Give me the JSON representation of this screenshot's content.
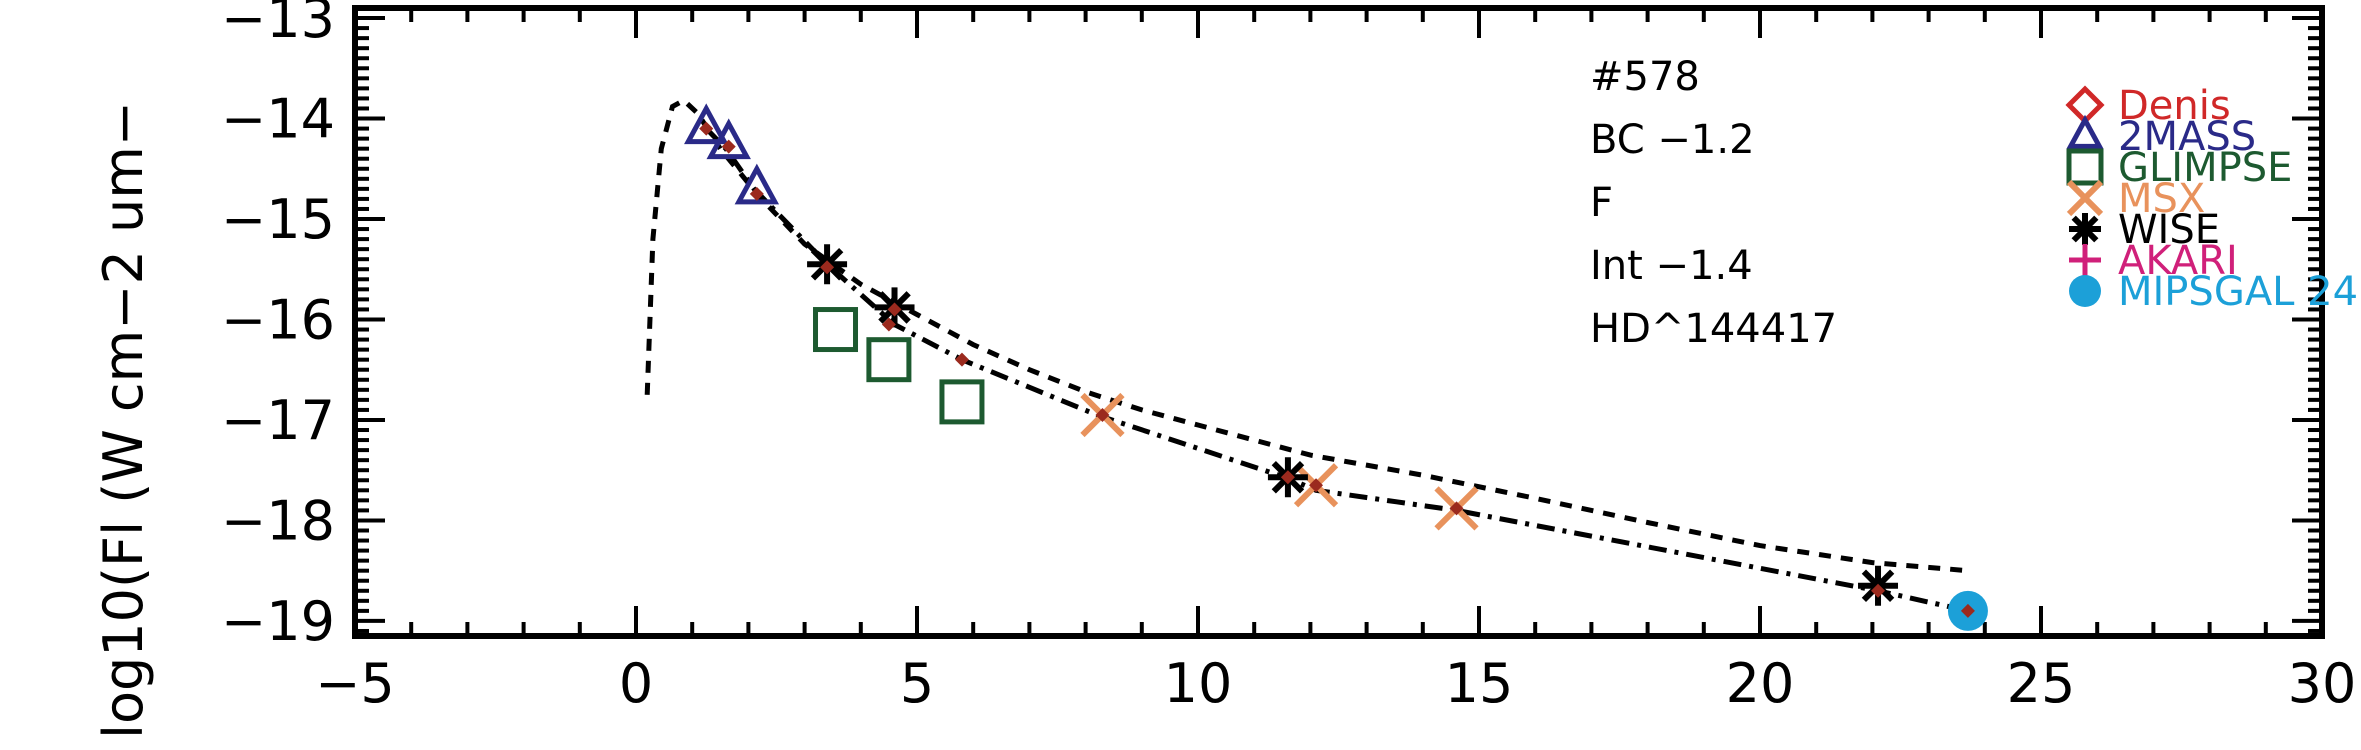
{
  "chart_data": {
    "type": "scatter",
    "ylabel": "log10(Fl (W cm−2 um−",
    "xlim": [
      -5,
      30
    ],
    "ylim": [
      -19.15,
      -12.9
    ],
    "x_ticks": [
      -5,
      0,
      5,
      10,
      15,
      20,
      25,
      30
    ],
    "x_tick_labels": [
      "−5",
      "0",
      "5",
      "10",
      "15",
      "20",
      "25",
      "30"
    ],
    "y_ticks": [
      -19,
      -18,
      -17,
      -16,
      -15,
      -14,
      -13
    ],
    "y_tick_labels": [
      "−19",
      "−18",
      "−17",
      "−16",
      "−15",
      "−14",
      "−13"
    ],
    "annotations": [
      "#578",
      "BC −1.2",
      "F",
      "Int −1.4",
      "HD^144417"
    ],
    "legend_position": "top-right",
    "curves": [
      {
        "style": "dashed",
        "points": [
          [
            0.2,
            -16.75
          ],
          [
            0.3,
            -15.2
          ],
          [
            0.45,
            -14.3
          ],
          [
            0.65,
            -13.88
          ],
          [
            0.85,
            -13.82
          ],
          [
            1.1,
            -13.95
          ],
          [
            1.5,
            -14.3
          ],
          [
            2.2,
            -14.78
          ],
          [
            3.0,
            -15.25
          ],
          [
            4.0,
            -15.65
          ],
          [
            5.0,
            -15.95
          ],
          [
            6.0,
            -16.25
          ],
          [
            7.0,
            -16.5
          ],
          [
            8.0,
            -16.72
          ],
          [
            9.0,
            -16.9
          ],
          [
            10.0,
            -17.05
          ],
          [
            11.0,
            -17.2
          ],
          [
            12.0,
            -17.35
          ],
          [
            14.0,
            -17.55
          ],
          [
            16.0,
            -17.78
          ],
          [
            18.0,
            -18.02
          ],
          [
            20.0,
            -18.25
          ],
          [
            22.0,
            -18.42
          ],
          [
            23.7,
            -18.5
          ]
        ]
      },
      {
        "style": "dash-dot",
        "points": [
          [
            1.25,
            -14.1
          ],
          [
            1.6,
            -14.3
          ],
          [
            2.1,
            -14.7
          ],
          [
            3.4,
            -15.45
          ],
          [
            4.6,
            -16.05
          ],
          [
            5.8,
            -16.4
          ],
          [
            8.2,
            -16.95
          ],
          [
            11.6,
            -17.58
          ],
          [
            12.1,
            -17.7
          ],
          [
            14.6,
            -17.9
          ],
          [
            22.1,
            -18.7
          ],
          [
            23.7,
            -18.9
          ]
        ]
      }
    ],
    "model_points": [
      [
        1.25,
        -14.1
      ],
      [
        1.65,
        -14.28
      ],
      [
        2.15,
        -14.75
      ],
      [
        3.4,
        -15.48
      ],
      [
        4.5,
        -16.05
      ],
      [
        4.6,
        -15.9
      ],
      [
        5.8,
        -16.4
      ],
      [
        8.3,
        -16.95
      ],
      [
        11.6,
        -17.57
      ],
      [
        12.1,
        -17.65
      ],
      [
        14.6,
        -17.88
      ],
      [
        22.1,
        -18.7
      ],
      [
        23.7,
        -18.9
      ]
    ],
    "series": [
      {
        "name": "Denis",
        "marker": "diamond",
        "color": "#d02828",
        "points": []
      },
      {
        "name": "2MASS",
        "marker": "triangle",
        "color": "#2a2a88",
        "points": [
          [
            1.25,
            -14.1
          ],
          [
            1.65,
            -14.25
          ],
          [
            2.15,
            -14.7
          ]
        ]
      },
      {
        "name": "GLIMPSE",
        "marker": "square",
        "color": "#1d5a30",
        "points": [
          [
            3.55,
            -16.1
          ],
          [
            4.5,
            -16.4
          ],
          [
            5.8,
            -16.82
          ]
        ]
      },
      {
        "name": "MSX",
        "marker": "x",
        "color": "#e8925c",
        "points": [
          [
            8.3,
            -16.95
          ],
          [
            12.1,
            -17.65
          ],
          [
            14.6,
            -17.88
          ]
        ]
      },
      {
        "name": "WISE",
        "marker": "asterisk",
        "color": "#000000",
        "points": [
          [
            3.4,
            -15.45
          ],
          [
            4.6,
            -15.88
          ],
          [
            11.6,
            -17.57
          ],
          [
            22.1,
            -18.65
          ]
        ]
      },
      {
        "name": "AKARI",
        "marker": "plus",
        "color": "#d0207a",
        "points": []
      },
      {
        "name": "MIPSGAL 24",
        "marker": "circle",
        "color": "#1ca0d8",
        "points": [
          [
            23.7,
            -18.9
          ]
        ]
      }
    ]
  }
}
